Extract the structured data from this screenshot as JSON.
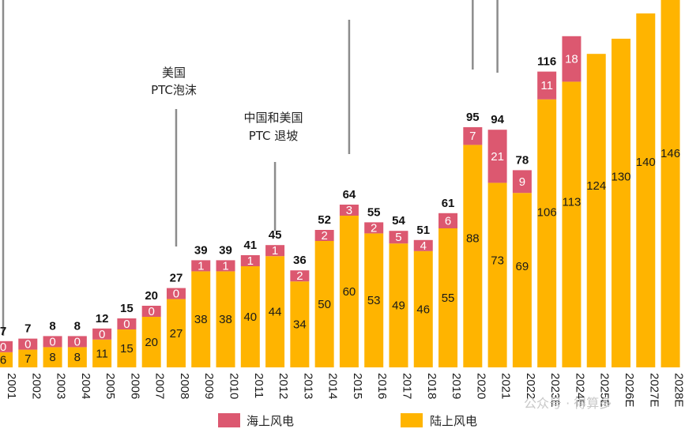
{
  "chart_data": {
    "type": "bar",
    "stacked": true,
    "categories": [
      "2001",
      "2002",
      "2003",
      "2004",
      "2005",
      "2006",
      "2007",
      "2008",
      "2009",
      "2010",
      "2011",
      "2012",
      "2013",
      "2014",
      "2015",
      "2016",
      "2017",
      "2018",
      "2019",
      "2020",
      "2021",
      "2022",
      "2023E",
      "2024E",
      "2025E",
      "2026E",
      "2027E",
      "2028E"
    ],
    "series": [
      {
        "name": "陆上风电",
        "color": "#FFB400",
        "values": [
          6,
          7,
          8,
          8,
          11,
          15,
          20,
          27,
          38,
          38,
          40,
          44,
          34,
          50,
          60,
          53,
          49,
          46,
          55,
          88,
          73,
          69,
          106,
          113,
          124,
          130,
          140,
          146
        ]
      },
      {
        "name": "海上风电",
        "color": "#DC5870",
        "values": [
          0,
          0,
          0,
          0,
          0,
          0,
          0,
          0,
          1,
          1,
          1,
          1,
          2,
          2,
          3,
          2,
          5,
          4,
          6,
          7,
          21,
          9,
          11,
          18,
          null,
          null,
          null,
          null
        ]
      }
    ],
    "totals": [
      7,
      7,
      8,
      8,
      12,
      15,
      20,
      27,
      39,
      39,
      41,
      45,
      36,
      52,
      64,
      55,
      54,
      51,
      61,
      95,
      94,
      78,
      116,
      null,
      null,
      null,
      null,
      null
    ],
    "annotations": [
      {
        "text": [
          "美国",
          "PTC泡沫"
        ],
        "category": "2008"
      },
      {
        "text": [
          "中国和美国",
          "PTC 退坡"
        ],
        "category": "2012"
      }
    ],
    "legend": {
      "position": "bottom"
    },
    "xlabel": "",
    "ylabel": "",
    "grid": false
  },
  "watermark": "公众号 · 得算多",
  "colors": {
    "onshore": "#FFB400",
    "offshore": "#DC5870",
    "line": "#8c8c8c"
  }
}
